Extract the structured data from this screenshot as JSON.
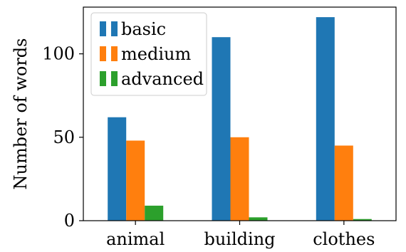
{
  "chart_data": {
    "type": "bar",
    "title": "",
    "xlabel": "",
    "ylabel": "Number of words",
    "categories": [
      "animal",
      "building",
      "clothes"
    ],
    "series": [
      {
        "name": "basic",
        "values": [
          62,
          110,
          122
        ],
        "color": "#1f77b4"
      },
      {
        "name": "medium",
        "values": [
          48,
          50,
          45
        ],
        "color": "#ff7f0e"
      },
      {
        "name": "advanced",
        "values": [
          9,
          2,
          1
        ],
        "color": "#2ca02c"
      }
    ],
    "ylim": [
      0,
      128
    ],
    "yticks": [
      0,
      50,
      100
    ],
    "grid": false,
    "legend_position": "top-left"
  }
}
